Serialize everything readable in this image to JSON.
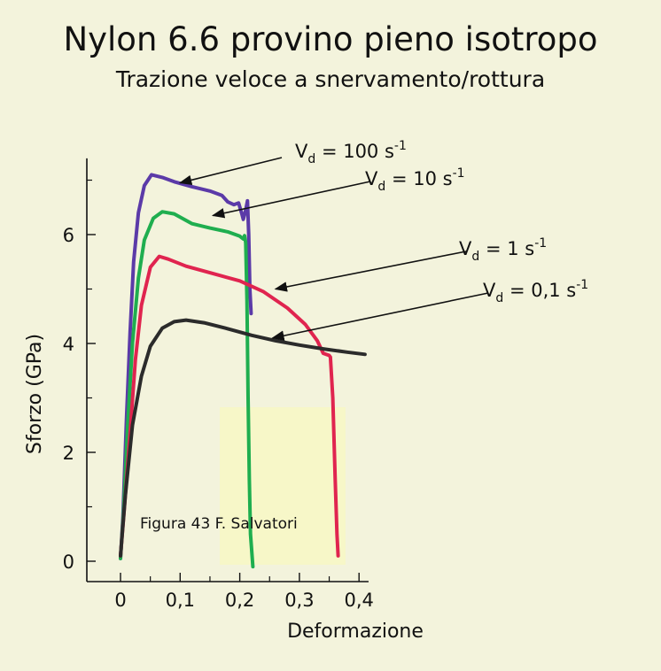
{
  "title": "Nylon 6.6   provino pieno isotropo",
  "subtitle": "Trazione veloce a snervamento/rottura",
  "credit": "Figura 43  F. Salvatori",
  "chart_data": {
    "type": "line",
    "xlabel": "Deformazione",
    "ylabel": "Sforzo (GPa)",
    "xlim": [
      0,
      0.41
    ],
    "ylim": [
      0,
      7.4
    ],
    "x_ticks": [
      0,
      0.1,
      0.2,
      0.3,
      0.4
    ],
    "x_tick_labels": [
      "0",
      "0,1",
      "0,2",
      "0,3",
      "0,4"
    ],
    "y_ticks": [
      0,
      2,
      4,
      6
    ],
    "y_tick_labels": [
      "0",
      "2",
      "4",
      "6"
    ],
    "grid": false,
    "legend": "none (series labeled by annotations with arrows)",
    "series": [
      {
        "name": "Vd = 100 s-1",
        "color": "#5b3aa8",
        "points": [
          [
            0,
            0.05
          ],
          [
            0.004,
            0.8
          ],
          [
            0.01,
            2.6
          ],
          [
            0.016,
            4.2
          ],
          [
            0.022,
            5.5
          ],
          [
            0.03,
            6.4
          ],
          [
            0.04,
            6.9
          ],
          [
            0.052,
            7.1
          ],
          [
            0.07,
            7.05
          ],
          [
            0.09,
            6.97
          ],
          [
            0.12,
            6.88
          ],
          [
            0.15,
            6.8
          ],
          [
            0.17,
            6.72
          ],
          [
            0.18,
            6.6
          ],
          [
            0.19,
            6.55
          ],
          [
            0.198,
            6.58
          ],
          [
            0.203,
            6.4
          ],
          [
            0.206,
            6.28
          ],
          [
            0.21,
            6.45
          ],
          [
            0.213,
            6.62
          ],
          [
            0.215,
            6.0
          ],
          [
            0.217,
            5.0
          ],
          [
            0.219,
            4.55
          ]
        ]
      },
      {
        "name": "Vd = 10 s-1",
        "color": "#1fae4f",
        "points": [
          [
            0,
            0.05
          ],
          [
            0.005,
            0.9
          ],
          [
            0.012,
            2.5
          ],
          [
            0.02,
            4.0
          ],
          [
            0.03,
            5.2
          ],
          [
            0.04,
            5.9
          ],
          [
            0.055,
            6.3
          ],
          [
            0.07,
            6.42
          ],
          [
            0.09,
            6.38
          ],
          [
            0.12,
            6.2
          ],
          [
            0.15,
            6.12
          ],
          [
            0.18,
            6.05
          ],
          [
            0.2,
            5.97
          ],
          [
            0.206,
            5.92
          ],
          [
            0.208,
            5.98
          ],
          [
            0.21,
            5.85
          ],
          [
            0.212,
            4.8
          ],
          [
            0.214,
            3.0
          ],
          [
            0.216,
            1.5
          ],
          [
            0.218,
            0.5
          ],
          [
            0.222,
            -0.1
          ]
        ]
      },
      {
        "name": "Vd = 1 s-1",
        "color": "#e0244f",
        "points": [
          [
            0,
            0.1
          ],
          [
            0.006,
            0.9
          ],
          [
            0.015,
            2.2
          ],
          [
            0.025,
            3.7
          ],
          [
            0.035,
            4.7
          ],
          [
            0.05,
            5.4
          ],
          [
            0.065,
            5.6
          ],
          [
            0.08,
            5.55
          ],
          [
            0.11,
            5.42
          ],
          [
            0.15,
            5.3
          ],
          [
            0.2,
            5.15
          ],
          [
            0.24,
            4.95
          ],
          [
            0.28,
            4.65
          ],
          [
            0.31,
            4.35
          ],
          [
            0.33,
            4.05
          ],
          [
            0.34,
            3.82
          ],
          [
            0.35,
            3.78
          ],
          [
            0.352,
            3.75
          ],
          [
            0.356,
            3.0
          ],
          [
            0.36,
            1.5
          ],
          [
            0.363,
            0.5
          ],
          [
            0.365,
            0.1
          ]
        ]
      },
      {
        "name": "Vd = 0,1 s-1",
        "color": "#2b2b2b",
        "points": [
          [
            0,
            0.1
          ],
          [
            0.008,
            1.2
          ],
          [
            0.02,
            2.5
          ],
          [
            0.035,
            3.4
          ],
          [
            0.05,
            3.95
          ],
          [
            0.07,
            4.28
          ],
          [
            0.09,
            4.4
          ],
          [
            0.11,
            4.43
          ],
          [
            0.14,
            4.38
          ],
          [
            0.18,
            4.27
          ],
          [
            0.22,
            4.15
          ],
          [
            0.26,
            4.05
          ],
          [
            0.3,
            3.97
          ],
          [
            0.34,
            3.9
          ],
          [
            0.38,
            3.84
          ],
          [
            0.41,
            3.8
          ]
        ]
      }
    ],
    "annotations": [
      {
        "text": "V",
        "sub": "d",
        "rest": " = 100 s",
        "sup": "-1",
        "arrow_to": [
          0.1,
          6.95
        ]
      },
      {
        "text": "V",
        "sub": "d",
        "rest": " = 10 s",
        "sup": "-1",
        "arrow_to": [
          0.155,
          6.35
        ]
      },
      {
        "text": "V",
        "sub": "d",
        "rest": " = 1 s",
        "sup": "-1",
        "arrow_to": [
          0.26,
          5.0
        ]
      },
      {
        "text": "V",
        "sub": "d",
        "rest": " = 0,1 s",
        "sup": "-1",
        "arrow_to": [
          0.255,
          4.1
        ]
      }
    ]
  }
}
